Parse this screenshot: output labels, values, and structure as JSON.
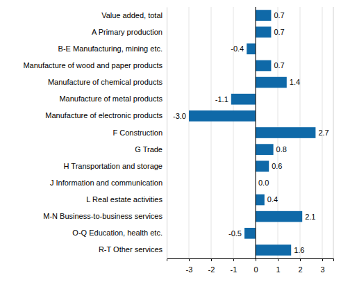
{
  "chart_data": {
    "type": "bar",
    "orientation": "horizontal",
    "categories": [
      "Value added, total",
      "A Primary production",
      "B-E Manufacturing, mining etc.",
      "Manufacture of wood and paper products",
      "Manufacture of chemical products",
      "Manufacture of metal products",
      "Manufacture of electronic products",
      "F Construction",
      "G Trade",
      "H Transportation and storage",
      "J Information and communication",
      "L Real estate activities",
      "M-N Business-to-business services",
      "O-Q Education, health etc.",
      "R-T Other services"
    ],
    "values": [
      0.7,
      0.7,
      -0.4,
      0.7,
      1.4,
      -1.1,
      -3.0,
      2.7,
      0.8,
      0.6,
      0.0,
      0.4,
      2.1,
      -0.5,
      1.6
    ],
    "value_labels": [
      "0.7",
      "0.7",
      "-0.4",
      "0.7",
      "1.4",
      "-1.1",
      "-3.0",
      "2.7",
      "0.8",
      "0.6",
      "0.0",
      "0.4",
      "2.1",
      "-0.5",
      "1.6"
    ],
    "color": "#0f69a8",
    "xlim": [
      -4,
      3.5
    ],
    "xticks": [
      -3,
      -2,
      -1,
      0,
      1,
      2,
      3
    ],
    "grid": true,
    "data_labels": true
  }
}
